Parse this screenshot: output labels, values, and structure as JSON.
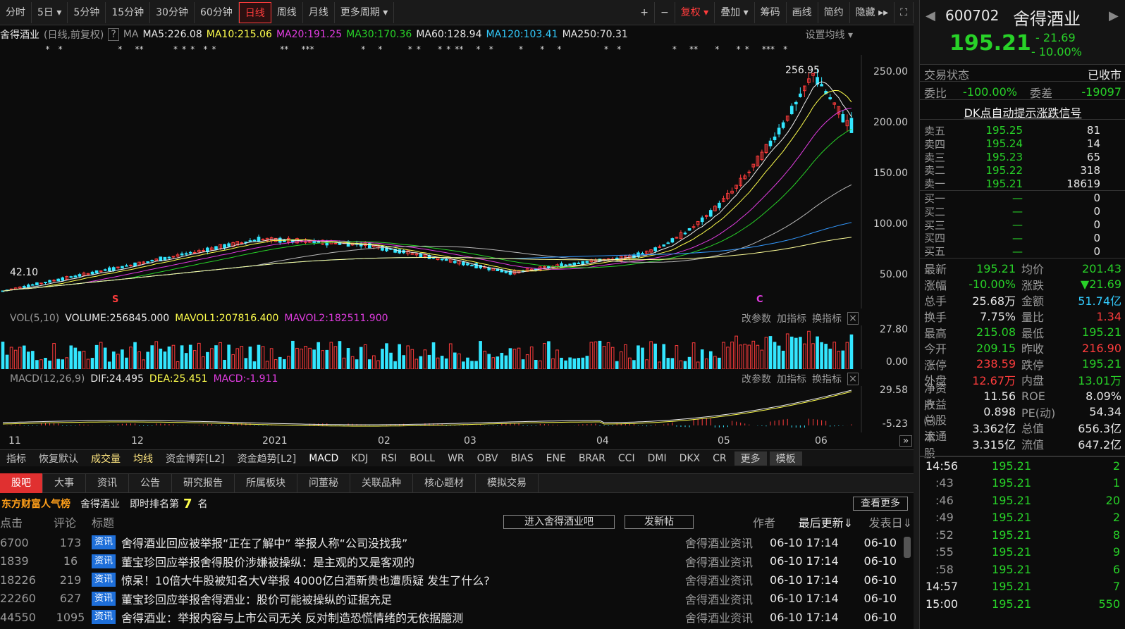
{
  "toolbar": {
    "items": [
      "分时",
      "5日 ▾",
      "5分钟",
      "15分钟",
      "30分钟",
      "60分钟",
      "日线",
      "周线",
      "月线",
      "更多周期 ▾"
    ],
    "active": "日线",
    "right": [
      "+",
      "−",
      "复权 ▾",
      "叠加 ▾",
      "筹码",
      "画线",
      "简约",
      "隐藏 ▸▸",
      "⛶"
    ]
  },
  "ma": {
    "name": "舍得酒业",
    "desc": "(日线,前复权)",
    "q": "?",
    "ma_label": "MA",
    "ma5": "MA5:226.08",
    "ma10": "MA10:215.06",
    "ma20": "MA20:191.25",
    "ma30": "MA30:170.36",
    "ma60": "MA60:128.94",
    "ma120": "MA120:103.41",
    "ma250": "MA250:70.31",
    "set": "设置均线 ▾"
  },
  "price_axis": [
    "250.00",
    "200.00",
    "150.00",
    "100.00",
    "50.00"
  ],
  "price_annot": {
    "high": "256.95",
    "low": "42.10",
    "s1": "S",
    "s2": "C"
  },
  "vol": {
    "label": "VOL(5,10)",
    "volume": "VOLUME:256845.000",
    "mavol1": "MAVOL1:207816.400",
    "mavol2": "MAVOL2:182511.900",
    "axis_top": "27.80",
    "axis_bot": "0.00",
    "btns": [
      "改参数",
      "加指标",
      "换指标"
    ]
  },
  "macd": {
    "label": "MACD(12,26,9)",
    "dif": "DIF:24.495",
    "dea": "DEA:25.451",
    "macd": "MACD:-1.911",
    "axis_top": "29.58",
    "axis_bot": "-5.23",
    "btns": [
      "改参数",
      "加指标",
      "换指标"
    ]
  },
  "xaxis": [
    "11",
    "12",
    "2021",
    "02",
    "03",
    "04",
    "05",
    "06"
  ],
  "indicators": [
    "指标",
    "恢复默认",
    "成交量",
    "均线",
    "资金博弈[L2]",
    "资金趋势[L2]",
    "MACD",
    "KDJ",
    "RSI",
    "BOLL",
    "WR",
    "OBV",
    "BIAS",
    "ENE",
    "BRAR",
    "CCI",
    "DMI",
    "DKX",
    "CR",
    "更多",
    "模板"
  ],
  "tabs": [
    "股吧",
    "大事",
    "资讯",
    "公告",
    "研究报告",
    "所属板块",
    "问董秘",
    "关联品种",
    "核心题材",
    "模拟交易"
  ],
  "rank": {
    "brand": "东方财富人气榜",
    "stock": "舍得酒业",
    "text": "即时排名第",
    "num": "7",
    "unit": "名",
    "more": "查看更多"
  },
  "listhdr": {
    "click": "点击",
    "comment": "评论",
    "title": "标题",
    "enter": "进入舍得酒业吧",
    "post": "发新帖",
    "author": "作者",
    "updated": "最后更新⇓",
    "posted": "发表日⇓"
  },
  "news": [
    {
      "click": "6700",
      "comment": "173",
      "tag": "资讯",
      "title": "舍得酒业回应被举报“正在了解中” 举报人称“公司没找我”",
      "author": "舍得酒业资讯",
      "upd": "06-10 17:14",
      "date": "06-10"
    },
    {
      "click": "1839",
      "comment": "16",
      "tag": "资讯",
      "title": "董宝珍回应举报舍得股价涉嫌被操纵：是主观的又是客观的",
      "author": "舍得酒业资讯",
      "upd": "06-10 17:14",
      "date": "06-10"
    },
    {
      "click": "18226",
      "comment": "219",
      "tag": "资讯",
      "title": "惊呆！10倍大牛股被知名大V举报 4000亿白酒新贵也遭质疑 发生了什么?",
      "author": "舍得酒业资讯",
      "upd": "06-10 17:14",
      "date": "06-10"
    },
    {
      "click": "22260",
      "comment": "627",
      "tag": "资讯",
      "title": "董宝珍回应举报舍得酒业：股价可能被操纵的证据充足",
      "author": "舍得酒业资讯",
      "upd": "06-10 17:14",
      "date": "06-10"
    },
    {
      "click": "44550",
      "comment": "1095",
      "tag": "资讯",
      "title": "舍得酒业：举报内容与上市公司无关 反对制造恐慌情绪的无依据臆测",
      "author": "舍得酒业资讯",
      "upd": "06-10 17:14",
      "date": "06-10"
    }
  ],
  "stock": {
    "code": "600702",
    "name": "舍得酒业",
    "price": "195.21",
    "chg": "- 21.69",
    "pct": "- 10.00%"
  },
  "status": {
    "label": "交易状态",
    "value": "已收市"
  },
  "wb": {
    "l1": "委比",
    "v1": "-100.00%",
    "l2": "委差",
    "v2": "-19097"
  },
  "dk": "DK点自动提示涨跌信号",
  "sell": [
    [
      "卖五",
      "195.25",
      "81"
    ],
    [
      "卖四",
      "195.24",
      "14"
    ],
    [
      "卖三",
      "195.23",
      "65"
    ],
    [
      "卖二",
      "195.22",
      "318"
    ],
    [
      "卖一",
      "195.21",
      "18619"
    ]
  ],
  "buy": [
    [
      "买一",
      "—",
      "0"
    ],
    [
      "买二",
      "—",
      "0"
    ],
    [
      "买三",
      "—",
      "0"
    ],
    [
      "买四",
      "—",
      "0"
    ],
    [
      "买五",
      "—",
      "0"
    ]
  ],
  "quotes": [
    [
      "最新",
      "195.21",
      "均价",
      "201.43"
    ],
    [
      "涨幅",
      "-10.00%",
      "涨跌",
      "▼21.69"
    ],
    [
      "总手",
      "25.68万",
      "金额",
      "51.74亿"
    ],
    [
      "换手",
      "7.75%",
      "量比",
      "1.34"
    ],
    [
      "最高",
      "215.08",
      "最低",
      "195.21"
    ],
    [
      "今开",
      "209.15",
      "昨收",
      "216.90"
    ],
    [
      "涨停",
      "238.59",
      "跌停",
      "195.21"
    ],
    [
      "外盘",
      "12.67万",
      "内盘",
      "13.01万"
    ],
    [
      "净资产",
      "11.56",
      "ROE",
      "8.09%"
    ],
    [
      "收益㈠",
      "0.898",
      "PE(动)",
      "54.34"
    ],
    [
      "总股本",
      "3.362亿",
      "总值",
      "656.3亿"
    ],
    [
      "流通股",
      "3.315亿",
      "流值",
      "647.2亿"
    ]
  ],
  "ticks": [
    [
      "14:56",
      "195.21",
      "2"
    ],
    [
      ":43",
      "195.21",
      "1"
    ],
    [
      ":46",
      "195.21",
      "20"
    ],
    [
      ":49",
      "195.21",
      "2"
    ],
    [
      ":52",
      "195.21",
      "8"
    ],
    [
      ":55",
      "195.21",
      "9"
    ],
    [
      ":58",
      "195.21",
      "6"
    ],
    [
      "14:57",
      "195.21",
      "7"
    ],
    [
      "15:00",
      "195.21",
      "550"
    ]
  ],
  "colors": {
    "up": "#ff3c3c",
    "down": "#28d228",
    "cyan": "#33e6ff",
    "yellow": "#ffff4d",
    "magenta": "#e03ce0"
  }
}
